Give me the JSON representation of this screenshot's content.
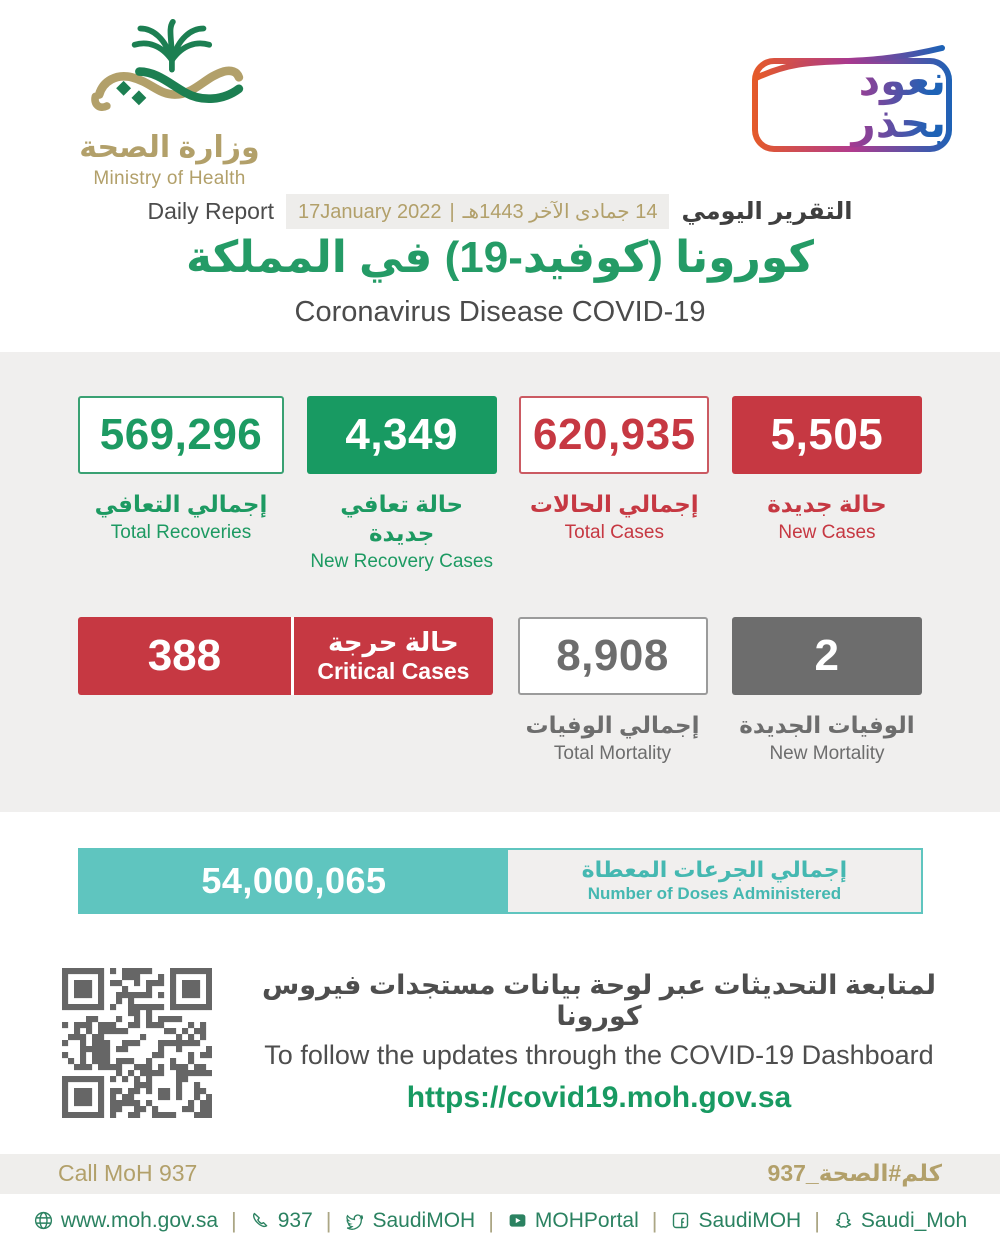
{
  "brand": {
    "ministry_name_ar": "وزارة الصحة",
    "ministry_name_en": "Ministry of Health",
    "badge_text": "نعود بحذر"
  },
  "header": {
    "report_label_en": "Daily Report",
    "report_label_ar": "التقرير اليومي",
    "date_hijri": "14 جمادى الآخر 1443هـ",
    "date_separator": "|",
    "date_gregorian": "17January 2022",
    "title_ar": "كورونا (كوفيد-19) في المملكة",
    "title_en": "Coronavirus Disease COVID-19"
  },
  "stats": {
    "total_recoveries": {
      "value": "569,296",
      "label_ar": "إجمالي التعافي",
      "label_en": "Total Recoveries"
    },
    "new_recoveries": {
      "value": "4,349",
      "label_ar": "حالة تعافي جديدة",
      "label_en": "New Recovery Cases"
    },
    "total_cases": {
      "value": "620,935",
      "label_ar": "إجمالي الحالات",
      "label_en": "Total Cases"
    },
    "new_cases": {
      "value": "5,505",
      "label_ar": "حالة جديدة",
      "label_en": "New Cases"
    },
    "critical_cases": {
      "value": "388",
      "label_ar": "حالة حرجة",
      "label_en": "Critical Cases"
    },
    "total_mortality": {
      "value": "8,908",
      "label_ar": "إجمالي الوفيات",
      "label_en": "Total Mortality"
    },
    "new_mortality": {
      "value": "2",
      "label_ar": "الوفيات الجديدة",
      "label_en": "New Mortality"
    }
  },
  "doses": {
    "value": "54,000,065",
    "label_ar": "إجمالي الجرعات المعطاة",
    "label_en": "Number of Doses Administered"
  },
  "dashboard": {
    "line_ar": "لمتابعة التحديثات عبر لوحة بيانات مستجدات فيروس كورونا",
    "line_en": "To follow the updates through the COVID-19 Dashboard",
    "url": "https://covid19.moh.gov.sa"
  },
  "callbar": {
    "left": "Call MoH 937",
    "right": "كلم#الصحة_937"
  },
  "footer": {
    "separator": "|",
    "items": [
      {
        "icon": "globe-icon",
        "label": "www.moh.gov.sa"
      },
      {
        "icon": "phone-icon",
        "label": "937"
      },
      {
        "icon": "twitter-icon",
        "label": "SaudiMOH"
      },
      {
        "icon": "youtube-icon",
        "label": "MOHPortal"
      },
      {
        "icon": "facebook-icon",
        "label": "SaudiMOH"
      },
      {
        "icon": "snapchat-icon",
        "label": "Saudi_Moh"
      }
    ]
  },
  "colors": {
    "green": "#189a62",
    "red": "#c63842",
    "gray": "#6d6d6d",
    "teal": "#5fc5bf",
    "tan": "#b2a06a",
    "text-dark": "#4b4b4b"
  }
}
